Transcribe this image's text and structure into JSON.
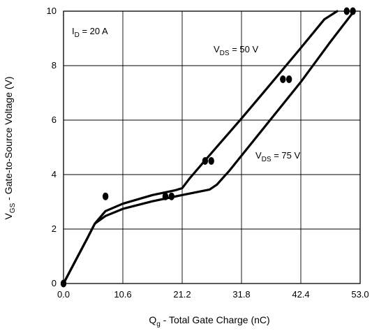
{
  "chart_data": {
    "type": "line",
    "xlabel": {
      "main": "Q",
      "sub": "g",
      "rest": " - Total Gate Charge (nC)"
    },
    "ylabel": {
      "main": "V",
      "sub": "GS",
      "rest": " - Gate-to-Source Voltage (V)"
    },
    "xlim": [
      0,
      53.0
    ],
    "ylim": [
      0,
      10
    ],
    "x_ticks": [
      "0.0",
      "10.6",
      "21.2",
      "31.8",
      "42.4",
      "53.0"
    ],
    "y_ticks": [
      "0",
      "2",
      "4",
      "6",
      "8",
      "10"
    ],
    "grid": true,
    "annotations": [
      {
        "main": "I",
        "sub": "D",
        "rest": " = 20 A"
      },
      {
        "main": "V",
        "sub": "DS",
        "rest": " = 50 V"
      },
      {
        "main": "V",
        "sub": "DS",
        "rest": " = 75 V"
      }
    ],
    "series": [
      {
        "label_index": 1,
        "x": [
          0,
          2.1,
          4.2,
          5.6,
          7.5,
          10.6,
          15.9,
          19.9,
          21.2,
          22.5,
          25.2,
          31.8,
          37.1,
          42.4,
          46.6,
          48.9
        ],
        "y": [
          0,
          0.82,
          1.64,
          2.2,
          2.66,
          2.93,
          3.25,
          3.42,
          3.5,
          3.85,
          4.5,
          6.06,
          7.35,
          8.65,
          9.7,
          10
        ]
      },
      {
        "label_index": 2,
        "x": [
          0,
          2.1,
          4.2,
          5.6,
          7.5,
          10.6,
          15.9,
          21.2,
          26.1,
          27.4,
          29.7,
          37.1,
          42.4,
          47.7,
          51.9
        ],
        "y": [
          0,
          0.82,
          1.64,
          2.2,
          2.48,
          2.74,
          3.02,
          3.25,
          3.45,
          3.63,
          4.16,
          6.05,
          7.4,
          8.88,
          10
        ]
      }
    ],
    "markers": [
      {
        "x": 0,
        "y": 0
      },
      {
        "x": 7.5,
        "y": 3.2
      },
      {
        "x": 18.2,
        "y": 3.2
      },
      {
        "x": 19.3,
        "y": 3.2
      },
      {
        "x": 25.3,
        "y": 4.5
      },
      {
        "x": 26.4,
        "y": 4.5
      },
      {
        "x": 39.2,
        "y": 7.5
      },
      {
        "x": 40.3,
        "y": 7.5
      },
      {
        "x": 50.6,
        "y": 10
      },
      {
        "x": 51.7,
        "y": 10
      }
    ]
  }
}
